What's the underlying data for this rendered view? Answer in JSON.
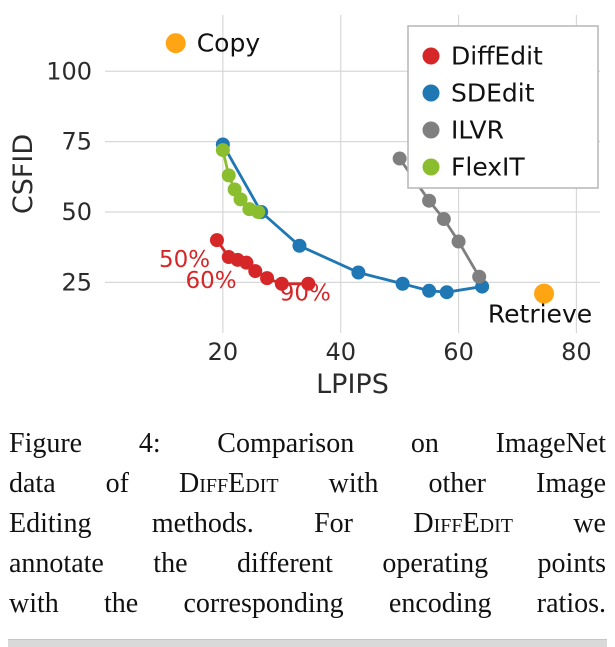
{
  "page": {
    "background": "#ffffff"
  },
  "chart_data": {
    "type": "scatter",
    "title": "",
    "xlabel": "LPIPS",
    "ylabel": "CSFID",
    "xlim": [
      0,
      84
    ],
    "ylim": [
      7,
      120
    ],
    "xticks": [
      20,
      40,
      60,
      80
    ],
    "yticks": [
      25,
      50,
      75,
      100
    ],
    "grid": true,
    "grid_color": "#d8d8d8",
    "text_color": "#2b2b2b",
    "legend_position": "top-right",
    "series": [
      {
        "name": "DiffEdit",
        "color": "#d62728",
        "points": [
          [
            19,
            40
          ],
          [
            21,
            34
          ],
          [
            22.5,
            33
          ],
          [
            24,
            32
          ],
          [
            25.5,
            29
          ],
          [
            27.5,
            26.5
          ],
          [
            30,
            24.5
          ],
          [
            34.5,
            24.5
          ]
        ]
      },
      {
        "name": "SDEdit",
        "color": "#1f77b4",
        "points": [
          [
            20,
            74
          ],
          [
            26.5,
            50
          ],
          [
            33,
            38
          ],
          [
            43,
            28.5
          ],
          [
            50.5,
            24.5
          ],
          [
            55,
            22
          ],
          [
            58,
            21.5
          ],
          [
            64,
            23.5
          ]
        ]
      },
      {
        "name": "ILVR",
        "color": "#7f7f7f",
        "points": [
          [
            50,
            69
          ],
          [
            55,
            54
          ],
          [
            57.5,
            47.5
          ],
          [
            60,
            39.5
          ],
          [
            63.5,
            27
          ]
        ]
      },
      {
        "name": "FlexIT",
        "color": "#8abe2e",
        "points": [
          [
            20,
            72
          ],
          [
            21,
            63
          ],
          [
            22,
            58
          ],
          [
            23,
            54.5
          ],
          [
            24.5,
            51
          ],
          [
            26,
            50
          ]
        ]
      }
    ],
    "special_points": [
      {
        "label": "Copy",
        "color": "#ffa513",
        "x": 12,
        "y": 110,
        "label_side": "right"
      },
      {
        "label": "Retrieve",
        "color": "#ffa513",
        "x": 74.5,
        "y": 21,
        "label_side": "below"
      }
    ],
    "annotations": [
      {
        "text": "50%",
        "x": 13.5,
        "y": 33,
        "color": "#d62728"
      },
      {
        "text": "60%",
        "x": 18,
        "y": 25.5,
        "color": "#d62728"
      },
      {
        "text": "90%",
        "x": 34,
        "y": 21,
        "color": "#d62728"
      }
    ]
  },
  "caption": {
    "lines": [
      {
        "justify": true,
        "segments": [
          {
            "text": "Figure 4: Comparison on ImageNet",
            "smallcaps": false
          }
        ]
      },
      {
        "justify": true,
        "segments": [
          {
            "text": "data of ",
            "smallcaps": false
          },
          {
            "text": "DiffEdit",
            "smallcaps": true
          },
          {
            "text": " with other Image",
            "smallcaps": false
          }
        ]
      },
      {
        "justify": true,
        "segments": [
          {
            "text": "Editing methods. For ",
            "smallcaps": false
          },
          {
            "text": "DiffEdit",
            "smallcaps": true
          },
          {
            "text": " we",
            "smallcaps": false
          }
        ]
      },
      {
        "justify": true,
        "segments": [
          {
            "text": "annotate the different operating points",
            "smallcaps": false
          }
        ]
      },
      {
        "justify": true,
        "segments": [
          {
            "text": "with the corresponding encoding ratios.",
            "smallcaps": false
          }
        ]
      }
    ]
  }
}
